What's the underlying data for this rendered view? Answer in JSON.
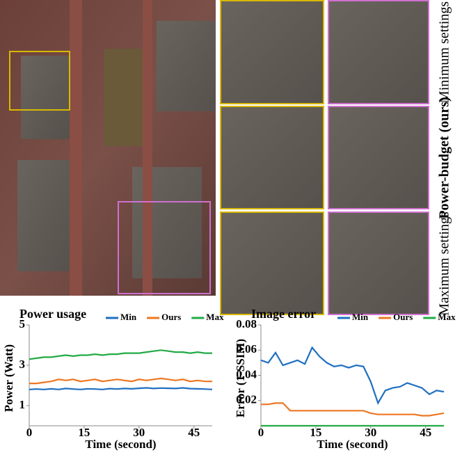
{
  "figure": {
    "row_labels": [
      "Minimum settings",
      "Power-budget (ours)",
      "Maximum settings"
    ]
  },
  "chart_data": [
    {
      "type": "line",
      "title": "Power usage",
      "xlabel": "Time (second)",
      "ylabel": "Power (Watt)",
      "x": [
        0,
        2,
        4,
        6,
        8,
        10,
        12,
        14,
        16,
        18,
        20,
        22,
        24,
        26,
        28,
        30,
        32,
        34,
        36,
        38,
        40,
        42,
        44,
        46,
        48,
        50
      ],
      "xlim": [
        0,
        50
      ],
      "xticks": [
        0,
        15,
        30,
        45
      ],
      "ylim": [
        0,
        5
      ],
      "yticks": [
        1,
        3,
        5
      ],
      "series": [
        {
          "name": "Min",
          "color": "#1f6fc0",
          "values": [
            1.8,
            1.82,
            1.8,
            1.83,
            1.8,
            1.85,
            1.82,
            1.8,
            1.83,
            1.82,
            1.8,
            1.84,
            1.82,
            1.85,
            1.83,
            1.86,
            1.88,
            1.85,
            1.87,
            1.86,
            1.85,
            1.88,
            1.84,
            1.83,
            1.82,
            1.8
          ]
        },
        {
          "name": "Ours",
          "color": "#ee7722",
          "values": [
            2.1,
            2.1,
            2.15,
            2.2,
            2.3,
            2.25,
            2.3,
            2.2,
            2.25,
            2.3,
            2.2,
            2.25,
            2.3,
            2.25,
            2.2,
            2.3,
            2.25,
            2.3,
            2.35,
            2.3,
            2.25,
            2.3,
            2.2,
            2.25,
            2.2,
            2.2
          ]
        },
        {
          "name": "Max",
          "color": "#22aa44",
          "values": [
            3.3,
            3.35,
            3.4,
            3.4,
            3.45,
            3.5,
            3.45,
            3.5,
            3.5,
            3.55,
            3.5,
            3.55,
            3.55,
            3.6,
            3.6,
            3.6,
            3.65,
            3.7,
            3.75,
            3.7,
            3.65,
            3.65,
            3.6,
            3.65,
            3.6,
            3.6
          ]
        }
      ]
    },
    {
      "type": "line",
      "title": "Image error",
      "xlabel": "Time (second)",
      "ylabel": "Error (1-SSIM)",
      "x": [
        0,
        2,
        4,
        6,
        8,
        10,
        12,
        14,
        16,
        18,
        20,
        22,
        24,
        26,
        28,
        30,
        32,
        34,
        36,
        38,
        40,
        42,
        44,
        46,
        48,
        50
      ],
      "xlim": [
        0,
        50
      ],
      "xticks": [
        0,
        15,
        30,
        45
      ],
      "ylim": [
        0,
        0.08
      ],
      "yticks": [
        0.02,
        0.04,
        0.06,
        0.08
      ],
      "series": [
        {
          "name": "Min",
          "color": "#1f6fc0",
          "values": [
            0.052,
            0.05,
            0.058,
            0.048,
            0.05,
            0.052,
            0.049,
            0.062,
            0.055,
            0.05,
            0.047,
            0.048,
            0.046,
            0.048,
            0.047,
            0.035,
            0.018,
            0.028,
            0.03,
            0.031,
            0.034,
            0.032,
            0.03,
            0.025,
            0.028,
            0.027
          ]
        },
        {
          "name": "Ours",
          "color": "#ee7722",
          "values": [
            0.017,
            0.017,
            0.018,
            0.018,
            0.012,
            0.012,
            0.012,
            0.012,
            0.012,
            0.012,
            0.012,
            0.012,
            0.012,
            0.012,
            0.012,
            0.01,
            0.009,
            0.009,
            0.009,
            0.009,
            0.009,
            0.009,
            0.008,
            0.008,
            0.009,
            0.01
          ]
        },
        {
          "name": "Max",
          "color": "#22aa44",
          "values": [
            0,
            0,
            0,
            0,
            0,
            0,
            0,
            0,
            0,
            0,
            0,
            0,
            0,
            0,
            0,
            0,
            0,
            0,
            0,
            0,
            0,
            0,
            0,
            0,
            0,
            0
          ]
        }
      ]
    }
  ]
}
